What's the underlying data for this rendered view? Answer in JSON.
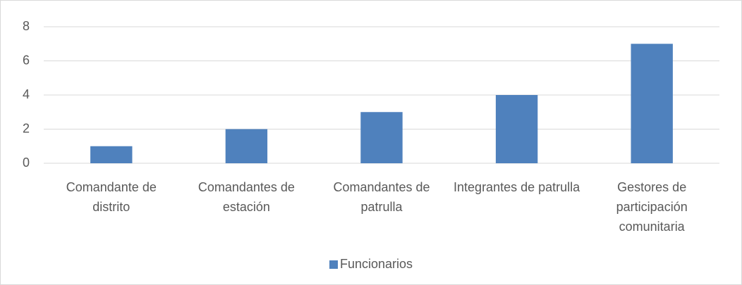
{
  "chart_data": {
    "type": "bar",
    "categories": [
      "Comandante de distrito",
      "Comandantes de estación",
      "Comandantes de patrulla",
      "Integrantes de patrulla",
      "Gestores de participación comunitaria"
    ],
    "series": [
      {
        "name": "Funcionarios",
        "color": "#4f81bd",
        "values": [
          1,
          2,
          3,
          4,
          7
        ]
      }
    ],
    "ylim": [
      0,
      8
    ],
    "yticks": [
      0,
      2,
      4,
      6,
      8
    ],
    "grid": true,
    "legend": "bottom"
  }
}
